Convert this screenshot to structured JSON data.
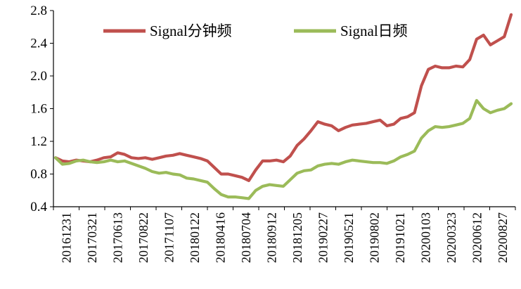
{
  "chart_data": {
    "type": "line",
    "title": "",
    "xlabel": "",
    "ylabel": "",
    "ylim": [
      0.4,
      2.8
    ],
    "y_ticks": [
      "0.4",
      "0.8",
      "1.2",
      "1.6",
      "2.0",
      "2.4",
      "2.8"
    ],
    "x_tick_labels": [
      "20161231",
      "20170321",
      "20170613",
      "20170822",
      "20171107",
      "20180122",
      "20180416",
      "20180704",
      "20180912",
      "20181205",
      "20190227",
      "20190521",
      "20190802",
      "20191021",
      "20200103",
      "20200323",
      "20200612",
      "20200827"
    ],
    "legend_position": "top-center",
    "grid": false,
    "series": [
      {
        "name": "Signal分钟频",
        "color": "#c0504d",
        "values": [
          1.0,
          0.96,
          0.95,
          0.97,
          0.96,
          0.95,
          0.97,
          1.0,
          1.01,
          1.06,
          1.04,
          1.0,
          0.99,
          1.0,
          0.98,
          1.0,
          1.02,
          1.03,
          1.05,
          1.03,
          1.01,
          0.99,
          0.96,
          0.88,
          0.8,
          0.8,
          0.78,
          0.76,
          0.72,
          0.85,
          0.96,
          0.96,
          0.97,
          0.95,
          1.02,
          1.15,
          1.23,
          1.33,
          1.44,
          1.41,
          1.39,
          1.33,
          1.37,
          1.4,
          1.41,
          1.42,
          1.44,
          1.46,
          1.39,
          1.41,
          1.48,
          1.5,
          1.55,
          1.88,
          2.08,
          2.12,
          2.1,
          2.1,
          2.12,
          2.11,
          2.2,
          2.45,
          2.5,
          2.38,
          2.43,
          2.48,
          2.75
        ]
      },
      {
        "name": "Signal日频",
        "color": "#9bbb59",
        "values": [
          1.0,
          0.92,
          0.93,
          0.96,
          0.97,
          0.95,
          0.94,
          0.95,
          0.97,
          0.95,
          0.96,
          0.93,
          0.9,
          0.87,
          0.83,
          0.81,
          0.82,
          0.8,
          0.79,
          0.75,
          0.74,
          0.72,
          0.7,
          0.62,
          0.55,
          0.52,
          0.52,
          0.51,
          0.5,
          0.6,
          0.65,
          0.67,
          0.66,
          0.65,
          0.73,
          0.81,
          0.84,
          0.85,
          0.9,
          0.92,
          0.93,
          0.92,
          0.95,
          0.97,
          0.96,
          0.95,
          0.94,
          0.94,
          0.93,
          0.96,
          1.01,
          1.04,
          1.08,
          1.24,
          1.33,
          1.38,
          1.37,
          1.38,
          1.4,
          1.42,
          1.48,
          1.7,
          1.6,
          1.55,
          1.58,
          1.6,
          1.66
        ]
      }
    ]
  }
}
